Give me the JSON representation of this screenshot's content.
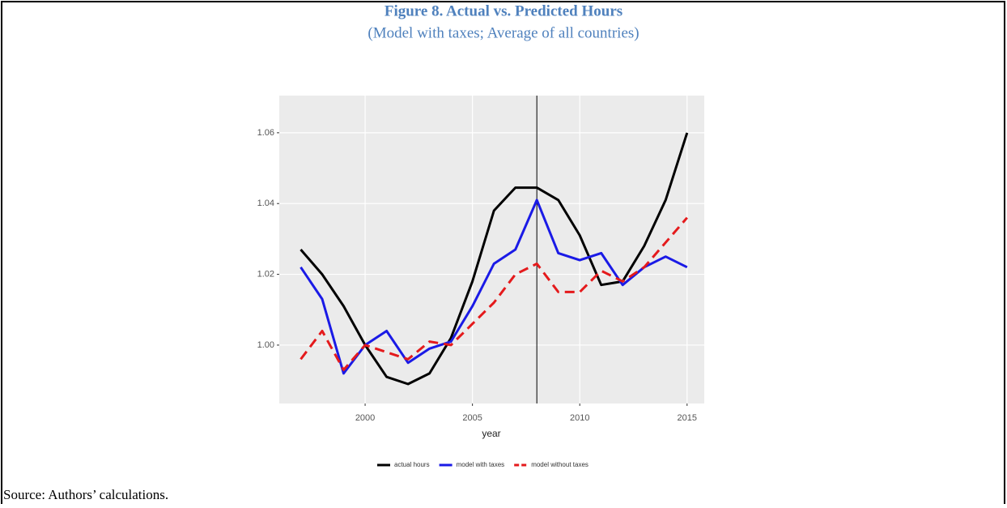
{
  "chart_data": {
    "type": "line",
    "title": "Figure 8. Actual vs. Predicted Hours",
    "subtitle": "(Model with taxes; Average of all countries)",
    "x_label": "year",
    "source": "Source: Authors’ calculations.",
    "x": [
      1997,
      1998,
      1999,
      2000,
      2001,
      2002,
      2003,
      2004,
      2005,
      2006,
      2007,
      2008,
      2009,
      2010,
      2011,
      2012,
      2013,
      2014,
      2015
    ],
    "series": [
      {
        "name": "actual hours",
        "color": "#000000",
        "dash": false,
        "values": [
          1.027,
          1.02,
          1.011,
          1.0,
          0.991,
          0.989,
          0.992,
          1.002,
          1.018,
          1.038,
          1.0445,
          1.0445,
          1.041,
          1.031,
          1.017,
          1.018,
          1.028,
          1.041,
          1.06
        ]
      },
      {
        "name": "model with taxes",
        "color": "#1a1ae6",
        "dash": false,
        "values": [
          1.022,
          1.013,
          0.992,
          1.0,
          1.004,
          0.995,
          0.999,
          1.001,
          1.011,
          1.023,
          1.027,
          1.041,
          1.026,
          1.024,
          1.026,
          1.017,
          1.022,
          1.025,
          1.022
        ]
      },
      {
        "name": "model without taxes",
        "color": "#e41a1c",
        "dash": true,
        "values": [
          0.996,
          1.004,
          0.993,
          1.0,
          0.998,
          0.996,
          1.001,
          1.0,
          1.006,
          1.012,
          1.02,
          1.023,
          1.015,
          1.015,
          1.021,
          1.018,
          1.022,
          1.029,
          1.036
        ]
      }
    ],
    "vline": 2008,
    "xlim": [
      1996,
      2015.8
    ],
    "xticks": [
      2000,
      2005,
      2010,
      2015
    ],
    "ylim": [
      0.9835,
      1.0705
    ],
    "yticks": [
      {
        "value": 1,
        "label": "1.00"
      },
      1.02,
      1.04,
      1.06
    ],
    "grid": true,
    "legend": "bottom"
  }
}
